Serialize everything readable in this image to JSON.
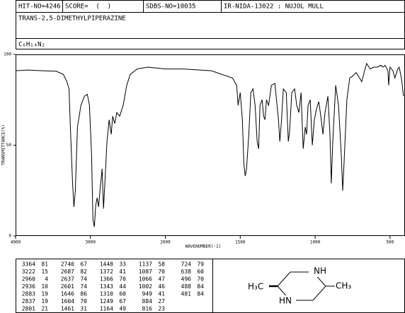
{
  "header": {
    "hit_no": "HIT-NO=4246",
    "score": "SCORE=  (  )",
    "sdbs_no": "SDBS-NO=10035",
    "method": "IR-NIDA-13022 : NUJOL MULL",
    "name": "TRANS-2,5-DIMETHYLPIPERAZINE",
    "formula": "C₆H₁₄N₂"
  },
  "chart_data": {
    "type": "line",
    "xlabel": "WAVENUMBER(-1)",
    "ylabel": "TRANSMITTANCE(%)",
    "xlim": [
      4000,
      400
    ],
    "x_scale_break": 2000,
    "ylim": [
      0,
      100
    ],
    "xticks": [
      4000,
      3000,
      2000,
      1500,
      1000,
      500
    ],
    "yticks": [
      0,
      50,
      100
    ],
    "series": [
      {
        "name": "spectrum",
        "color": "#000000",
        "x": [
          4000,
          3831,
          3643,
          3455,
          3362,
          3315,
          3286,
          3268,
          3239,
          3221,
          3202,
          3174,
          3127,
          3080,
          3042,
          3014,
          2986,
          2967,
          2948,
          2930,
          2911,
          2892,
          2873,
          2845,
          2826,
          2808,
          2779,
          2751,
          2723,
          2704,
          2676,
          2648,
          2610,
          2563,
          2516,
          2469,
          2376,
          2235,
          2000,
          1882,
          1693,
          1552,
          1524,
          1514,
          1500,
          1486,
          1476,
          1467,
          1458,
          1443,
          1429,
          1415,
          1401,
          1387,
          1377,
          1368,
          1354,
          1344,
          1335,
          1325,
          1311,
          1292,
          1269,
          1245,
          1236,
          1226,
          1212,
          1193,
          1179,
          1170,
          1156,
          1137,
          1123,
          1108,
          1094,
          1080,
          1066,
          1057,
          1047,
          1033,
          1019,
          1005,
          991,
          976,
          962,
          948,
          934,
          915,
          901,
          892,
          882,
          863,
          844,
          825,
          816,
          807,
          788,
          769,
          750,
          726,
          703,
          689,
          670,
          656,
          632,
          608,
          585,
          561,
          547,
          533,
          514,
          509,
          500,
          481,
          467,
          448,
          439,
          424,
          410
        ],
        "values": [
          91,
          91.4,
          91,
          90.7,
          89,
          85,
          81,
          60,
          29,
          16,
          25,
          60,
          72,
          77,
          78,
          72,
          45,
          9,
          5,
          17,
          21,
          16,
          25,
          37,
          15,
          29,
          52,
          64,
          56,
          66,
          62,
          68,
          66,
          72,
          83,
          89,
          92,
          93,
          92,
          92,
          91,
          87,
          83,
          72,
          79,
          64,
          40,
          33,
          37,
          56,
          79,
          81,
          72,
          52,
          48,
          72,
          75,
          66,
          64,
          75,
          72,
          83,
          84,
          64,
          52,
          62,
          81,
          79,
          52,
          58,
          79,
          81,
          72,
          68,
          79,
          48,
          60,
          56,
          72,
          75,
          50,
          64,
          70,
          74,
          66,
          56,
          68,
          77,
          56,
          29,
          52,
          83,
          72,
          44,
          25,
          40,
          75,
          87,
          88,
          90,
          87,
          85,
          91,
          95,
          92,
          93,
          93,
          94,
          93,
          94,
          91,
          83,
          93,
          91,
          87,
          92,
          93,
          87,
          77
        ]
      }
    ]
  },
  "peak_table": {
    "columns": [
      [
        [
          3364,
          81
        ],
        [
          3222,
          15
        ],
        [
          2960,
          4
        ],
        [
          2936,
          10
        ],
        [
          2883,
          19
        ],
        [
          2837,
          19
        ],
        [
          2801,
          21
        ]
      ],
      [
        [
          2740,
          67
        ],
        [
          2687,
          82
        ],
        [
          2637,
          74
        ],
        [
          2601,
          74
        ],
        [
          1646,
          86
        ],
        [
          1604,
          70
        ],
        [
          1461,
          31
        ]
      ],
      [
        [
          1448,
          33
        ],
        [
          1372,
          41
        ],
        [
          1366,
          70
        ],
        [
          1343,
          44
        ],
        [
          1310,
          60
        ],
        [
          1249,
          67
        ],
        [
          1164,
          49
        ]
      ],
      [
        [
          1137,
          58
        ],
        [
          1087,
          70
        ],
        [
          1066,
          47
        ],
        [
          1002,
          46
        ],
        [
          949,
          41
        ],
        [
          884,
          27
        ],
        [
          816,
          23
        ]
      ],
      [
        [
          724,
          79
        ],
        [
          638,
          60
        ],
        [
          496,
          70
        ],
        [
          488,
          84
        ],
        [
          481,
          84
        ]
      ]
    ]
  },
  "structure": {
    "top_right": "NH",
    "left": "H₃C",
    "right": "CH₃",
    "bottom_left": "HN"
  }
}
